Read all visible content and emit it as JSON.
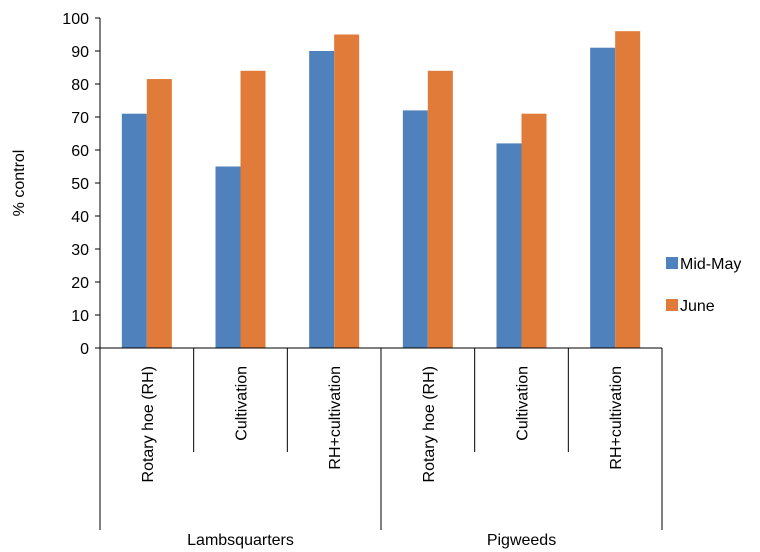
{
  "chart_data": {
    "type": "bar",
    "ylabel": "% control",
    "ylim": [
      0,
      100
    ],
    "yticks": [
      0,
      10,
      20,
      30,
      40,
      50,
      60,
      70,
      80,
      90,
      100
    ],
    "groups": [
      {
        "name": "Lambsquarters",
        "categories": [
          "Rotary hoe (RH)",
          "Cultivation",
          "RH+cultivation"
        ]
      },
      {
        "name": "Pigweeds",
        "categories": [
          "Rotary hoe (RH)",
          "Cultivation",
          "RH+cultivation"
        ]
      }
    ],
    "series": [
      {
        "name": "Mid-May",
        "color": "#4f81bd",
        "values": [
          71,
          55,
          90,
          72,
          62,
          91
        ]
      },
      {
        "name": "June",
        "color": "#e07b39",
        "values": [
          81.5,
          84,
          95,
          84,
          71,
          96
        ]
      }
    ],
    "legend": "right",
    "grid": false
  }
}
